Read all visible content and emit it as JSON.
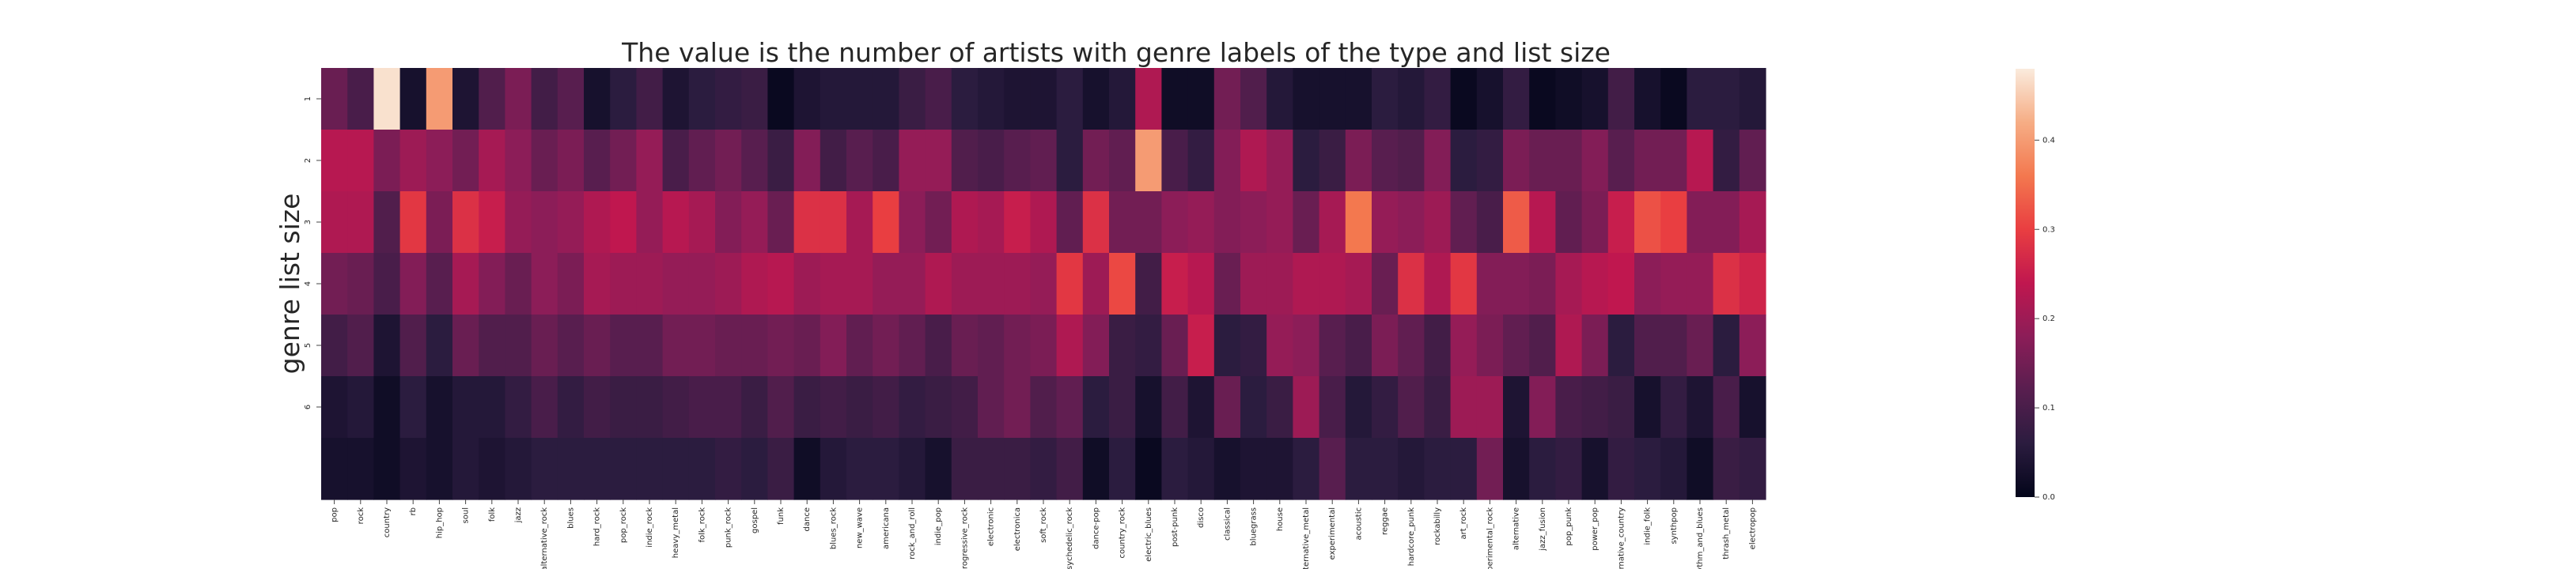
{
  "chart_data": {
    "type": "heatmap",
    "title": "The value is the number of artists with genre labels of the type and list size",
    "xlabel": "",
    "ylabel": "genre list size",
    "x_categories": [
      "pop",
      "rock",
      "country",
      "rb",
      "hip_hop",
      "soul",
      "folk",
      "jazz",
      "alternative_rock",
      "blues",
      "hard_rock",
      "pop_rock",
      "indie_rock",
      "heavy_metal",
      "folk_rock",
      "punk_rock",
      "gospel",
      "funk",
      "dance",
      "blues_rock",
      "new_wave",
      "americana",
      "rock_and_roll",
      "indie_pop",
      "progressive_rock",
      "electronic",
      "electronica",
      "soft_rock",
      "psychedelic_rock",
      "dance-pop",
      "country_rock",
      "electric_blues",
      "post-punk",
      "disco",
      "classical",
      "bluegrass",
      "house",
      "alternative_metal",
      "experimental",
      "acoustic",
      "reggae",
      "hardcore_punk",
      "rockabilly",
      "art_rock",
      "experimental_rock",
      "alternative",
      "jazz_fusion",
      "pop_punk",
      "power_pop",
      "alternative_country",
      "indie_folk",
      "synthpop",
      "rhythm_and_blues",
      "thrash_metal",
      "electropop"
    ],
    "y_ticklabels": [
      "1",
      "2",
      "3",
      "4",
      "5",
      "6",
      ""
    ],
    "colorbar": {
      "min": 0.0,
      "max": 0.48,
      "ticks": [
        "0.0",
        "0.1",
        "0.2",
        "0.3",
        "0.4"
      ]
    },
    "values": [
      [
        0.14,
        0.1,
        0.47,
        0.03,
        0.4,
        0.04,
        0.11,
        0.16,
        0.09,
        0.12,
        0.03,
        0.06,
        0.09,
        0.04,
        0.06,
        0.07,
        0.08,
        0.01,
        0.04,
        0.05,
        0.05,
        0.05,
        0.08,
        0.1,
        0.06,
        0.05,
        0.04,
        0.04,
        0.06,
        0.03,
        0.05,
        0.22,
        0.02,
        0.02,
        0.15,
        0.11,
        0.05,
        0.03,
        0.03,
        0.03,
        0.06,
        0.05,
        0.07,
        0.01,
        0.03,
        0.07,
        0.01,
        0.02,
        0.03,
        0.09,
        0.03,
        0.01,
        0.06,
        0.06,
        0.05
      ],
      [
        0.23,
        0.23,
        0.16,
        0.2,
        0.18,
        0.15,
        0.21,
        0.18,
        0.14,
        0.16,
        0.12,
        0.15,
        0.19,
        0.1,
        0.13,
        0.15,
        0.12,
        0.08,
        0.17,
        0.09,
        0.12,
        0.1,
        0.19,
        0.19,
        0.11,
        0.1,
        0.12,
        0.13,
        0.06,
        0.15,
        0.13,
        0.4,
        0.1,
        0.07,
        0.17,
        0.22,
        0.19,
        0.06,
        0.08,
        0.16,
        0.12,
        0.11,
        0.17,
        0.06,
        0.07,
        0.16,
        0.14,
        0.14,
        0.17,
        0.12,
        0.15,
        0.15,
        0.23,
        0.07,
        0.13
      ],
      [
        0.22,
        0.22,
        0.11,
        0.29,
        0.16,
        0.28,
        0.25,
        0.19,
        0.18,
        0.19,
        0.22,
        0.24,
        0.19,
        0.23,
        0.21,
        0.17,
        0.19,
        0.14,
        0.28,
        0.28,
        0.21,
        0.3,
        0.18,
        0.15,
        0.22,
        0.21,
        0.25,
        0.22,
        0.13,
        0.28,
        0.15,
        0.15,
        0.18,
        0.19,
        0.17,
        0.18,
        0.19,
        0.14,
        0.21,
        0.36,
        0.19,
        0.18,
        0.2,
        0.13,
        0.1,
        0.33,
        0.23,
        0.13,
        0.16,
        0.25,
        0.32,
        0.3,
        0.17,
        0.17,
        0.21
      ],
      [
        0.15,
        0.14,
        0.1,
        0.17,
        0.12,
        0.21,
        0.17,
        0.14,
        0.18,
        0.16,
        0.21,
        0.2,
        0.2,
        0.19,
        0.19,
        0.2,
        0.22,
        0.23,
        0.2,
        0.21,
        0.21,
        0.19,
        0.19,
        0.22,
        0.2,
        0.2,
        0.2,
        0.19,
        0.29,
        0.2,
        0.31,
        0.09,
        0.25,
        0.23,
        0.14,
        0.2,
        0.2,
        0.22,
        0.22,
        0.21,
        0.14,
        0.28,
        0.22,
        0.29,
        0.17,
        0.17,
        0.16,
        0.21,
        0.23,
        0.24,
        0.18,
        0.19,
        0.19,
        0.28,
        0.26
      ],
      [
        0.09,
        0.11,
        0.04,
        0.11,
        0.06,
        0.14,
        0.11,
        0.11,
        0.14,
        0.12,
        0.14,
        0.12,
        0.12,
        0.15,
        0.15,
        0.14,
        0.14,
        0.15,
        0.14,
        0.17,
        0.13,
        0.15,
        0.13,
        0.1,
        0.14,
        0.13,
        0.15,
        0.16,
        0.22,
        0.17,
        0.08,
        0.07,
        0.14,
        0.25,
        0.06,
        0.07,
        0.19,
        0.18,
        0.12,
        0.1,
        0.16,
        0.13,
        0.09,
        0.19,
        0.16,
        0.13,
        0.11,
        0.22,
        0.16,
        0.06,
        0.11,
        0.11,
        0.14,
        0.06,
        0.18
      ],
      [
        0.04,
        0.05,
        0.02,
        0.06,
        0.03,
        0.05,
        0.05,
        0.07,
        0.1,
        0.07,
        0.09,
        0.08,
        0.08,
        0.09,
        0.1,
        0.1,
        0.08,
        0.11,
        0.08,
        0.09,
        0.08,
        0.09,
        0.07,
        0.08,
        0.09,
        0.13,
        0.15,
        0.11,
        0.13,
        0.06,
        0.08,
        0.03,
        0.09,
        0.04,
        0.14,
        0.06,
        0.08,
        0.2,
        0.1,
        0.05,
        0.07,
        0.11,
        0.08,
        0.2,
        0.2,
        0.04,
        0.17,
        0.1,
        0.09,
        0.08,
        0.03,
        0.07,
        0.04,
        0.1,
        0.03
      ],
      [
        0.03,
        0.03,
        0.02,
        0.04,
        0.03,
        0.05,
        0.04,
        0.05,
        0.06,
        0.06,
        0.06,
        0.06,
        0.06,
        0.06,
        0.06,
        0.07,
        0.06,
        0.08,
        0.02,
        0.05,
        0.06,
        0.06,
        0.05,
        0.03,
        0.08,
        0.08,
        0.08,
        0.07,
        0.09,
        0.02,
        0.06,
        0.01,
        0.06,
        0.05,
        0.03,
        0.04,
        0.04,
        0.06,
        0.12,
        0.06,
        0.06,
        0.05,
        0.06,
        0.06,
        0.15,
        0.03,
        0.06,
        0.07,
        0.03,
        0.07,
        0.06,
        0.05,
        0.02,
        0.08,
        0.07
      ]
    ]
  }
}
